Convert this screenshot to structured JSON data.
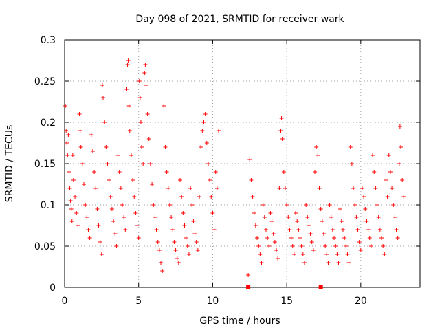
{
  "chart_data": {
    "type": "scatter",
    "title": "Day 098 of 2021, SRMTID for receiver wark",
    "xlabel": "GPS time / hours",
    "ylabel": "SRMTID / TECUs",
    "xlim": [
      0,
      24
    ],
    "ylim": [
      0,
      0.3
    ],
    "xticks": [
      0,
      5,
      10,
      15,
      20
    ],
    "xtick_labels": [
      "0",
      "5",
      "10",
      "15",
      "20"
    ],
    "yticks": [
      0,
      0.05,
      0.1,
      0.15,
      0.2,
      0.25,
      0.3
    ],
    "ytick_labels": [
      "0",
      "0.05",
      "0.1",
      "0.15",
      "0.2",
      "0.25",
      "0.3"
    ],
    "grid": true,
    "marker": "+",
    "color": "#ff0000",
    "series": [
      {
        "name": "SRMTID",
        "points": [
          [
            0.05,
            0.22
          ],
          [
            0.1,
            0.19
          ],
          [
            0.15,
            0.175
          ],
          [
            0.2,
            0.16
          ],
          [
            0.25,
            0.185
          ],
          [
            0.3,
            0.14
          ],
          [
            0.35,
            0.12
          ],
          [
            0.4,
            0.105
          ],
          [
            0.45,
            0.095
          ],
          [
            0.5,
            0.08
          ],
          [
            0.55,
            0.16
          ],
          [
            0.6,
            0.13
          ],
          [
            0.7,
            0.11
          ],
          [
            0.8,
            0.09
          ],
          [
            0.9,
            0.075
          ],
          [
            1.0,
            0.21
          ],
          [
            1.05,
            0.19
          ],
          [
            1.1,
            0.17
          ],
          [
            1.2,
            0.15
          ],
          [
            1.3,
            0.125
          ],
          [
            1.4,
            0.1
          ],
          [
            1.5,
            0.085
          ],
          [
            1.6,
            0.07
          ],
          [
            1.7,
            0.06
          ],
          [
            1.8,
            0.185
          ],
          [
            1.9,
            0.165
          ],
          [
            2.0,
            0.14
          ],
          [
            2.1,
            0.12
          ],
          [
            2.2,
            0.095
          ],
          [
            2.3,
            0.075
          ],
          [
            2.4,
            0.055
          ],
          [
            2.5,
            0.04
          ],
          [
            2.55,
            0.245
          ],
          [
            2.6,
            0.23
          ],
          [
            2.7,
            0.2
          ],
          [
            2.8,
            0.17
          ],
          [
            2.9,
            0.15
          ],
          [
            3.0,
            0.13
          ],
          [
            3.1,
            0.11
          ],
          [
            3.2,
            0.095
          ],
          [
            3.3,
            0.08
          ],
          [
            3.4,
            0.065
          ],
          [
            3.5,
            0.05
          ],
          [
            3.6,
            0.16
          ],
          [
            3.7,
            0.14
          ],
          [
            3.8,
            0.12
          ],
          [
            3.9,
            0.1
          ],
          [
            4.0,
            0.085
          ],
          [
            4.1,
            0.07
          ],
          [
            4.2,
            0.24
          ],
          [
            4.25,
            0.27
          ],
          [
            4.3,
            0.275
          ],
          [
            4.35,
            0.22
          ],
          [
            4.4,
            0.19
          ],
          [
            4.5,
            0.16
          ],
          [
            4.6,
            0.13
          ],
          [
            4.7,
            0.11
          ],
          [
            4.8,
            0.09
          ],
          [
            4.9,
            0.075
          ],
          [
            5.0,
            0.06
          ],
          [
            5.05,
            0.25
          ],
          [
            5.1,
            0.23
          ],
          [
            5.15,
            0.2
          ],
          [
            5.2,
            0.17
          ],
          [
            5.3,
            0.15
          ],
          [
            5.4,
            0.26
          ],
          [
            5.45,
            0.27
          ],
          [
            5.5,
            0.245
          ],
          [
            5.6,
            0.21
          ],
          [
            5.7,
            0.18
          ],
          [
            5.8,
            0.15
          ],
          [
            5.9,
            0.125
          ],
          [
            6.0,
            0.1
          ],
          [
            6.1,
            0.085
          ],
          [
            6.2,
            0.07
          ],
          [
            6.3,
            0.055
          ],
          [
            6.4,
            0.045
          ],
          [
            6.5,
            0.03
          ],
          [
            6.6,
            0.02
          ],
          [
            6.7,
            0.22
          ],
          [
            6.8,
            0.17
          ],
          [
            6.9,
            0.14
          ],
          [
            7.0,
            0.12
          ],
          [
            7.1,
            0.1
          ],
          [
            7.2,
            0.085
          ],
          [
            7.3,
            0.07
          ],
          [
            7.4,
            0.055
          ],
          [
            7.5,
            0.045
          ],
          [
            7.6,
            0.035
          ],
          [
            7.7,
            0.03
          ],
          [
            7.8,
            0.13
          ],
          [
            7.9,
            0.11
          ],
          [
            8.0,
            0.09
          ],
          [
            8.1,
            0.075
          ],
          [
            8.2,
            0.06
          ],
          [
            8.3,
            0.05
          ],
          [
            8.4,
            0.04
          ],
          [
            8.5,
            0.12
          ],
          [
            8.6,
            0.1
          ],
          [
            8.7,
            0.08
          ],
          [
            8.8,
            0.065
          ],
          [
            8.9,
            0.055
          ],
          [
            9.0,
            0.045
          ],
          [
            9.1,
            0.11
          ],
          [
            9.2,
            0.17
          ],
          [
            9.3,
            0.19
          ],
          [
            9.4,
            0.2
          ],
          [
            9.5,
            0.21
          ],
          [
            9.6,
            0.175
          ],
          [
            9.7,
            0.15
          ],
          [
            9.8,
            0.13
          ],
          [
            9.9,
            0.11
          ],
          [
            10.0,
            0.09
          ],
          [
            10.1,
            0.07
          ],
          [
            10.2,
            0.14
          ],
          [
            10.3,
            0.12
          ],
          [
            10.4,
            0.19
          ],
          [
            12.4,
            0.015
          ],
          [
            12.5,
            0.155
          ],
          [
            12.6,
            0.13
          ],
          [
            12.7,
            0.11
          ],
          [
            12.8,
            0.09
          ],
          [
            12.9,
            0.075
          ],
          [
            13.0,
            0.06
          ],
          [
            13.1,
            0.05
          ],
          [
            13.2,
            0.04
          ],
          [
            13.3,
            0.03
          ],
          [
            13.4,
            0.1
          ],
          [
            13.5,
            0.085
          ],
          [
            13.6,
            0.07
          ],
          [
            13.7,
            0.06
          ],
          [
            13.8,
            0.05
          ],
          [
            13.9,
            0.09
          ],
          [
            14.0,
            0.08
          ],
          [
            14.1,
            0.065
          ],
          [
            14.2,
            0.055
          ],
          [
            14.3,
            0.045
          ],
          [
            14.4,
            0.035
          ],
          [
            14.5,
            0.12
          ],
          [
            14.6,
            0.19
          ],
          [
            14.65,
            0.205
          ],
          [
            14.7,
            0.18
          ],
          [
            14.8,
            0.14
          ],
          [
            14.9,
            0.12
          ],
          [
            15.0,
            0.1
          ],
          [
            15.1,
            0.085
          ],
          [
            15.2,
            0.07
          ],
          [
            15.3,
            0.06
          ],
          [
            15.4,
            0.05
          ],
          [
            15.5,
            0.04
          ],
          [
            15.6,
            0.09
          ],
          [
            15.7,
            0.08
          ],
          [
            15.8,
            0.07
          ],
          [
            15.9,
            0.06
          ],
          [
            16.0,
            0.05
          ],
          [
            16.1,
            0.04
          ],
          [
            16.2,
            0.03
          ],
          [
            16.3,
            0.1
          ],
          [
            16.4,
            0.085
          ],
          [
            16.5,
            0.075
          ],
          [
            16.6,
            0.065
          ],
          [
            16.7,
            0.055
          ],
          [
            16.8,
            0.045
          ],
          [
            16.9,
            0.14
          ],
          [
            17.0,
            0.17
          ],
          [
            17.1,
            0.16
          ],
          [
            17.2,
            0.12
          ],
          [
            17.3,
            0.095
          ],
          [
            17.4,
            0.08
          ],
          [
            17.5,
            0.065
          ],
          [
            17.6,
            0.05
          ],
          [
            17.7,
            0.04
          ],
          [
            17.8,
            0.03
          ],
          [
            17.9,
            0.1
          ],
          [
            18.0,
            0.085
          ],
          [
            18.1,
            0.07
          ],
          [
            18.2,
            0.06
          ],
          [
            18.3,
            0.05
          ],
          [
            18.4,
            0.04
          ],
          [
            18.5,
            0.03
          ],
          [
            18.6,
            0.095
          ],
          [
            18.7,
            0.08
          ],
          [
            18.8,
            0.07
          ],
          [
            18.9,
            0.06
          ],
          [
            19.0,
            0.05
          ],
          [
            19.1,
            0.04
          ],
          [
            19.2,
            0.03
          ],
          [
            19.3,
            0.17
          ],
          [
            19.4,
            0.15
          ],
          [
            19.5,
            0.12
          ],
          [
            19.6,
            0.1
          ],
          [
            19.7,
            0.085
          ],
          [
            19.8,
            0.07
          ],
          [
            19.9,
            0.055
          ],
          [
            20.0,
            0.045
          ],
          [
            20.1,
            0.12
          ],
          [
            20.2,
            0.11
          ],
          [
            20.3,
            0.095
          ],
          [
            20.4,
            0.08
          ],
          [
            20.5,
            0.07
          ],
          [
            20.6,
            0.06
          ],
          [
            20.7,
            0.05
          ],
          [
            20.8,
            0.16
          ],
          [
            20.9,
            0.14
          ],
          [
            21.0,
            0.12
          ],
          [
            21.1,
            0.1
          ],
          [
            21.2,
            0.085
          ],
          [
            21.3,
            0.07
          ],
          [
            21.4,
            0.06
          ],
          [
            21.5,
            0.05
          ],
          [
            21.6,
            0.04
          ],
          [
            21.7,
            0.13
          ],
          [
            21.8,
            0.11
          ],
          [
            21.9,
            0.16
          ],
          [
            22.0,
            0.14
          ],
          [
            22.1,
            0.12
          ],
          [
            22.2,
            0.1
          ],
          [
            22.3,
            0.085
          ],
          [
            22.4,
            0.07
          ],
          [
            22.5,
            0.06
          ],
          [
            22.6,
            0.15
          ],
          [
            22.65,
            0.195
          ],
          [
            22.7,
            0.17
          ],
          [
            22.8,
            0.13
          ],
          [
            22.9,
            0.11
          ]
        ]
      }
    ],
    "baseline_markers_x": [
      12.4,
      17.3
    ]
  }
}
